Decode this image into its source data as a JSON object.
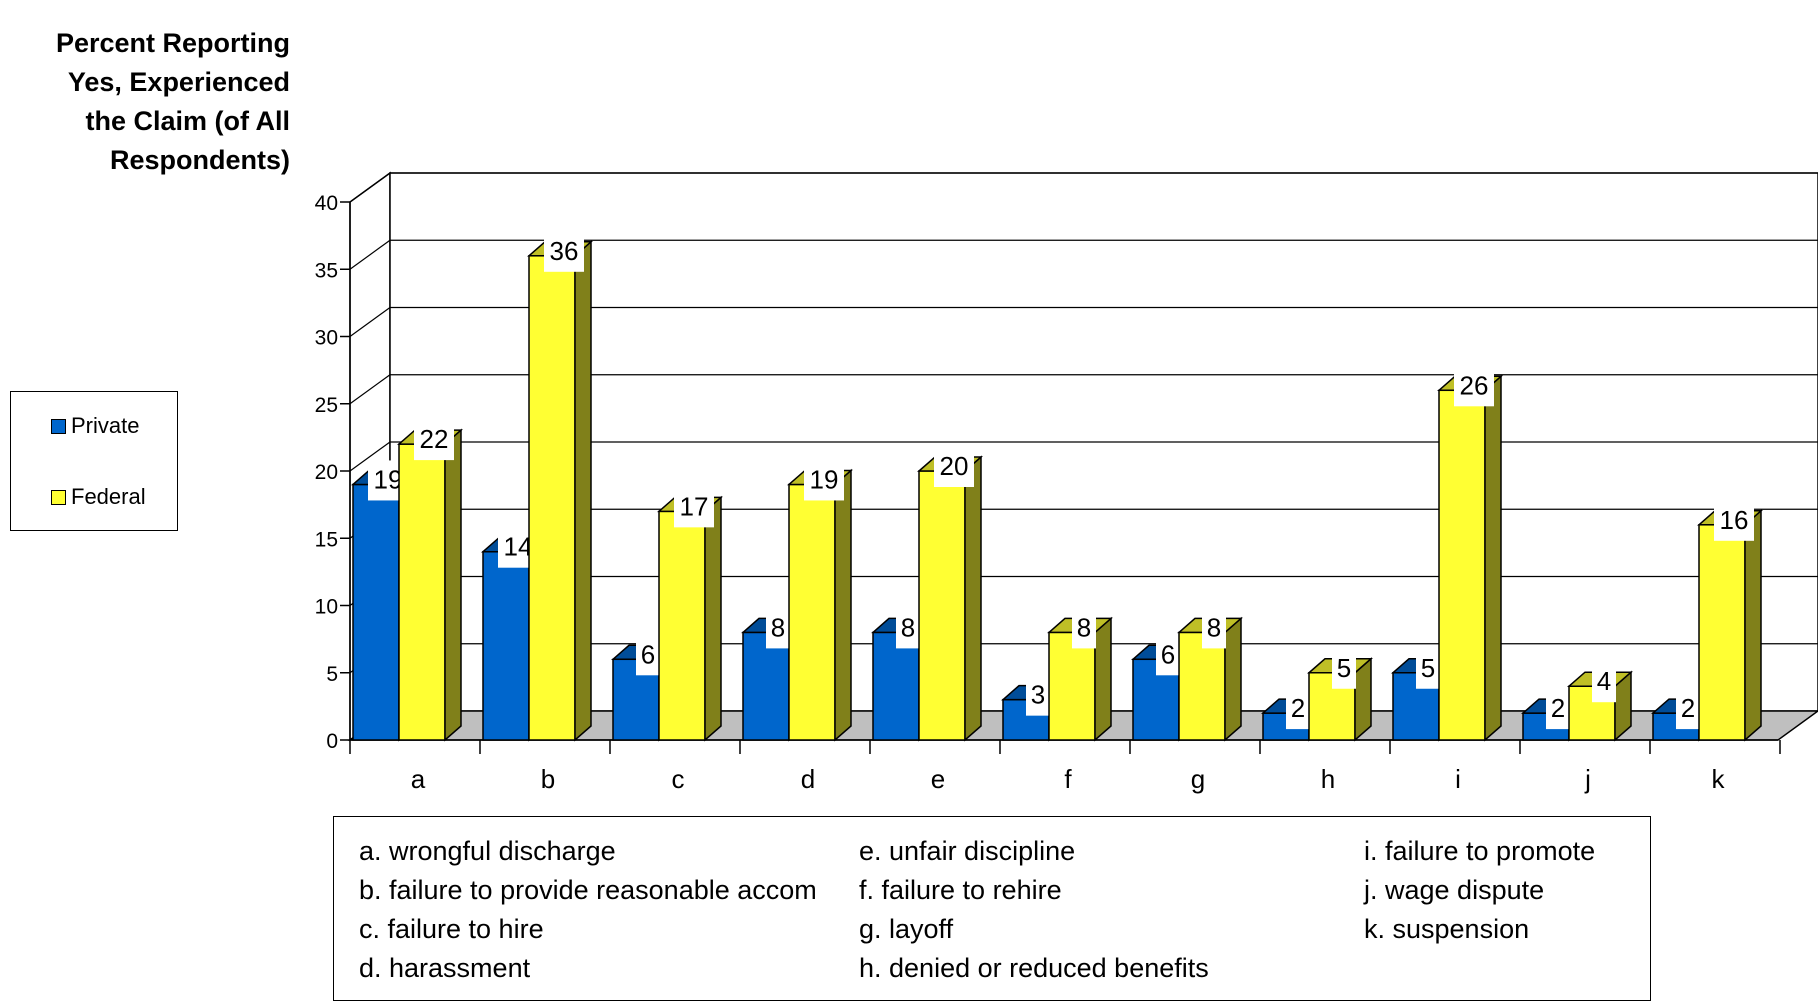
{
  "chart_data": {
    "type": "bar",
    "ylabel": "Percent Reporting Yes, Experienced the Claim (of All Respondents)",
    "ylim": [
      0,
      40
    ],
    "yticks": [
      "0",
      "5",
      "10",
      "15",
      "20",
      "25",
      "30",
      "35",
      "40"
    ],
    "categories": [
      "a",
      "b",
      "c",
      "d",
      "e",
      "f",
      "g",
      "h",
      "i",
      "j",
      "k"
    ],
    "series": [
      {
        "name": "Private",
        "color": "#0066CC",
        "values": [
          19,
          14,
          6,
          8,
          8,
          3,
          6,
          2,
          5,
          2,
          2
        ]
      },
      {
        "name": "Federal",
        "color": "#FFFF33",
        "values": [
          22,
          36,
          17,
          19,
          20,
          8,
          8,
          5,
          26,
          4,
          16
        ]
      }
    ],
    "grid": true,
    "legend_position": "left",
    "style": "3d-clustered-bar"
  },
  "key": {
    "columns": [
      [
        "a. wrongful discharge",
        "b. failure to provide reasonable accom",
        "c. failure to hire",
        "d. harassment"
      ],
      [
        "e. unfair discipline",
        "f. failure to rehire",
        "g. layoff",
        "h. denied or reduced benefits"
      ],
      [
        "i. failure to promote",
        "j. wage dispute",
        "k. suspension"
      ]
    ]
  }
}
